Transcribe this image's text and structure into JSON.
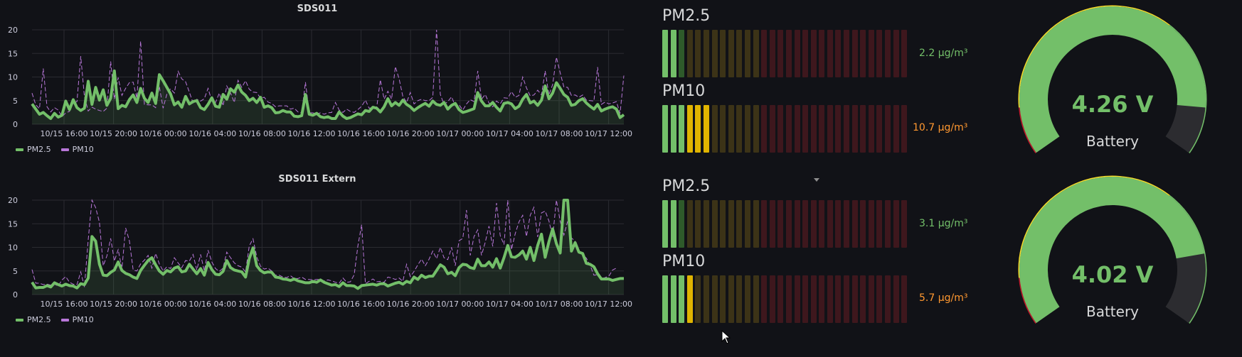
{
  "colors": {
    "pm25": "#73bf69",
    "pm10": "#b877d9",
    "orange": "#ff9830",
    "yellow": "#fade2a",
    "red": "#c4162a",
    "gauge_track": "#2c2c30"
  },
  "charts": [
    {
      "title": "SDS011",
      "legend": [
        {
          "name": "PM2.5",
          "color": "#73bf69"
        },
        {
          "name": "PM10",
          "color": "#b877d9"
        }
      ]
    },
    {
      "title": "SDS011 Extern",
      "legend": [
        {
          "name": "PM2.5",
          "color": "#73bf69"
        },
        {
          "name": "PM10",
          "color": "#b877d9"
        }
      ]
    }
  ],
  "chart_data": [
    {
      "type": "line",
      "title": "SDS011",
      "xlabel": "",
      "ylabel": "",
      "ylim": [
        0,
        20
      ],
      "yticks": [
        "0",
        "5",
        "10",
        "15",
        "20"
      ],
      "xticks": [
        "10/15 16:00",
        "10/15 20:00",
        "10/16 00:00",
        "10/16 04:00",
        "10/16 08:00",
        "10/16 12:00",
        "10/16 16:00",
        "10/16 20:00",
        "10/17 00:00",
        "10/17 04:00",
        "10/17 08:00",
        "10/17 12:00"
      ],
      "grid": true,
      "legend_position": "bottom-left",
      "series": [
        {
          "name": "PM2.5",
          "values": [
            4.3,
            3.2,
            2.1,
            2.5,
            1.8,
            1.2,
            2.3,
            1.5,
            1.9,
            4.9,
            3.1,
            5.2,
            3.5,
            2.9,
            3.4,
            9.1,
            4.2,
            7.8,
            5.1,
            7.3,
            4.0,
            5.5,
            11.3,
            3.3,
            4.0,
            3.7,
            5.2,
            6.2,
            4.6,
            7.6,
            5.5,
            4.6,
            6.6,
            4.4,
            10.5,
            9.2,
            7.8,
            6.4,
            4.1,
            4.7,
            3.6,
            5.9,
            4.3,
            4.8,
            5.0,
            3.5,
            3.1,
            4.2,
            5.6,
            3.8,
            3.6,
            6.3,
            5.3,
            7.5,
            6.8,
            8.3,
            6.8,
            6.1,
            5.0,
            5.5,
            4.6,
            5.7,
            3.6,
            3.9,
            3.5,
            2.4,
            2.5,
            2.9,
            2.6,
            2.6,
            1.7,
            1.6,
            1.8,
            6.3,
            2.1,
            1.9,
            2.3,
            1.6,
            1.4,
            1.6,
            1.2,
            1.2,
            2.6,
            1.7,
            1.2,
            1.4,
            1.8,
            2.2,
            2.0,
            2.9,
            2.7,
            3.6,
            3.4,
            2.6,
            3.7,
            5.4,
            3.9,
            4.6,
            4.0,
            5.1,
            4.2,
            3.7,
            2.9,
            3.5,
            4.0,
            4.4,
            3.8,
            4.9,
            4.2,
            4.0,
            4.6,
            3.2,
            4.0,
            4.4,
            3.1,
            2.5,
            2.7,
            3.0,
            3.3,
            6.7,
            4.9,
            3.9,
            3.9,
            4.6,
            3.6,
            2.8,
            4.4,
            4.6,
            4.3,
            3.3,
            3.8,
            5.3,
            6.3,
            4.5,
            4.9,
            4.0,
            5.1,
            8.1,
            5.4,
            6.6,
            8.8,
            7.6,
            6.3,
            5.7,
            4.0,
            4.2,
            5.0,
            5.4,
            4.5,
            3.8,
            3.2,
            4.2,
            2.8,
            3.2,
            3.5,
            3.7,
            3.2,
            1.4,
            2.0
          ]
        },
        {
          "name": "PM10",
          "values": [
            6.6,
            4.1,
            3.3,
            11.8,
            3.7,
            2.6,
            3.5,
            3.0,
            1.6,
            2.4,
            2.7,
            4.5,
            4.8,
            14.4,
            5.8,
            2.8,
            3.6,
            3.2,
            2.9,
            2.7,
            3.4,
            13.3,
            5.3,
            9.9,
            6.1,
            7.6,
            8.8,
            8.9,
            5.5,
            17.6,
            4.2,
            4.1,
            4.1,
            3.5,
            8.0,
            3.4,
            6.4,
            7.5,
            6.6,
            11.2,
            9.6,
            9.0,
            6.8,
            4.5,
            5.3,
            4.9,
            5.4,
            7.6,
            4.9,
            4.6,
            6.6,
            3.9,
            8.1,
            6.6,
            4.6,
            9.3,
            7.8,
            9.2,
            7.4,
            6.8,
            6.7,
            5.5,
            5.7,
            4.7,
            4.4,
            3.7,
            3.9,
            3.9,
            3.9,
            3.2,
            3.4,
            2.6,
            2.4,
            8.9,
            2.4,
            2.4,
            2.2,
            2.4,
            2.1,
            2.4,
            2.5,
            4.6,
            3.0,
            2.5,
            3.2,
            2.7,
            2.5,
            3.1,
            3.8,
            5.1,
            3.4,
            3.5,
            3.5,
            9.4,
            5.3,
            7.0,
            5.3,
            12.2,
            9.6,
            5.9,
            4.6,
            6.7,
            4.3,
            5.0,
            5.3,
            5.0,
            5.0,
            5.7,
            20.0,
            6.3,
            4.2,
            4.8,
            5.8,
            3.9,
            4.1,
            3.0,
            4.3,
            5.2,
            4.8,
            11.3,
            5.3,
            6.3,
            4.5,
            3.7,
            4.9,
            4.3,
            5.6,
            5.5,
            6.9,
            5.7,
            6.1,
            10.0,
            7.7,
            6.0,
            6.2,
            7.2,
            6.2,
            11.3,
            6.2,
            8.4,
            14.2,
            10.9,
            7.9,
            7.8,
            6.1,
            6.2,
            5.7,
            6.2,
            5.1,
            5.0,
            4.9,
            12.1,
            4.2,
            4.7,
            4.3,
            4.5,
            4.8,
            2.3,
            10.3
          ]
        }
      ]
    },
    {
      "type": "line",
      "title": "SDS011 Extern",
      "xlabel": "",
      "ylabel": "",
      "ylim": [
        0,
        20
      ],
      "yticks": [
        "0",
        "5",
        "10",
        "15",
        "20"
      ],
      "xticks": [
        "10/15 16:00",
        "10/15 20:00",
        "10/16 00:00",
        "10/16 04:00",
        "10/16 08:00",
        "10/16 12:00",
        "10/16 16:00",
        "10/16 20:00",
        "10/17 00:00",
        "10/17 04:00",
        "10/17 08:00",
        "10/17 12:00"
      ],
      "grid": true,
      "legend_position": "bottom-left",
      "series": [
        {
          "name": "PM2.5",
          "values": [
            2.6,
            1.4,
            1.5,
            1.5,
            1.9,
            1.6,
            2.5,
            2.1,
            1.8,
            2.2,
            1.9,
            1.8,
            1.4,
            2.3,
            2.1,
            3.5,
            12.3,
            11.3,
            6.4,
            4.1,
            4.0,
            4.7,
            5.2,
            6.9,
            5.1,
            4.5,
            4.2,
            3.7,
            3.4,
            5.1,
            6.2,
            7.2,
            7.8,
            6.3,
            5.0,
            4.3,
            5.1,
            4.8,
            5.6,
            5.9,
            4.8,
            5.0,
            6.4,
            5.4,
            4.4,
            5.5,
            4.1,
            6.8,
            5.3,
            4.3,
            4.2,
            4.9,
            7.2,
            5.7,
            5.2,
            5.0,
            4.8,
            3.7,
            7.6,
            9.9,
            6.1,
            5.1,
            4.6,
            4.8,
            4.7,
            3.7,
            3.6,
            3.3,
            3.2,
            3.0,
            3.3,
            2.9,
            2.7,
            2.5,
            2.5,
            2.8,
            2.6,
            3.1,
            2.6,
            2.3,
            2.0,
            2.1,
            1.7,
            2.5,
            1.9,
            1.9,
            1.8,
            1.3,
            1.9,
            2.0,
            2.1,
            2.2,
            2.0,
            2.3,
            2.3,
            1.8,
            2.1,
            2.4,
            2.6,
            2.2,
            2.8,
            2.5,
            3.7,
            3.2,
            4.1,
            3.6,
            3.9,
            3.9,
            5.1,
            6.3,
            5.8,
            4.4,
            4.7,
            4.0,
            5.7,
            6.4,
            6.3,
            5.7,
            5.5,
            7.5,
            6.1,
            6.1,
            6.9,
            5.8,
            7.6,
            5.6,
            7.8,
            10.4,
            8.0,
            7.9,
            8.4,
            9.2,
            7.5,
            10.0,
            7.2,
            10.4,
            12.8,
            7.9,
            11.2,
            13.9,
            10.8,
            8.8,
            20.0,
            20.0,
            9.2,
            11.0,
            9.0,
            8.7,
            6.6,
            6.4,
            5.9,
            4.4,
            3.3,
            3.3,
            3.3,
            3.0,
            3.2,
            3.4,
            3.4
          ]
        },
        {
          "name": "PM10",
          "values": [
            5.3,
            2.4,
            2.4,
            2.1,
            2.2,
            2.0,
            2.2,
            1.8,
            3.1,
            3.8,
            2.6,
            2.2,
            2.1,
            4.8,
            1.6,
            11.6,
            20.0,
            18.4,
            15.3,
            6.1,
            8.2,
            11.9,
            7.1,
            9.5,
            5.5,
            14.1,
            11.4,
            5.2,
            5.0,
            6.5,
            7.3,
            8.3,
            5.6,
            8.7,
            6.5,
            5.0,
            5.9,
            5.5,
            7.8,
            6.7,
            5.7,
            7.2,
            7.1,
            8.5,
            5.2,
            8.5,
            5.0,
            9.4,
            6.9,
            5.5,
            4.9,
            5.6,
            9.0,
            7.8,
            6.7,
            6.1,
            5.8,
            4.8,
            10.3,
            11.8,
            8.0,
            6.0,
            5.4,
            5.6,
            5.0,
            4.1,
            4.1,
            3.7,
            3.6,
            4.0,
            3.4,
            3.4,
            3.7,
            3.2,
            3.2,
            3.1,
            3.2,
            3.2,
            2.9,
            3.1,
            2.9,
            2.6,
            2.4,
            3.5,
            2.6,
            2.7,
            4.2,
            10.3,
            14.8,
            2.3,
            2.8,
            3.3,
            2.7,
            2.8,
            2.6,
            3.7,
            3.5,
            3.2,
            3.5,
            2.8,
            6.4,
            3.8,
            4.9,
            6.3,
            7.5,
            6.1,
            7.5,
            9.2,
            7.6,
            10.0,
            7.8,
            7.4,
            10.0,
            6.1,
            11.4,
            11.9,
            17.9,
            8.3,
            12.3,
            13.7,
            8.3,
            11.1,
            14.5,
            10.2,
            19.4,
            12.5,
            10.6,
            20.0,
            9.5,
            12.9,
            15.4,
            16.8,
            12.3,
            16.8,
            18.5,
            12.2,
            17.3,
            17.7,
            15.6,
            12.2,
            20.0,
            15.6,
            12.6,
            15.5,
            12.0,
            11.3,
            9.0,
            8.5,
            7.7,
            6.2,
            4.1,
            4.2,
            3.3,
            3.6,
            3.9,
            5.2,
            5.6
          ]
        }
      ]
    }
  ],
  "bargauges": [
    {
      "title": "PM2.5",
      "value_text": "2.2 µg/m³",
      "value": 2.2,
      "lit_cells": 3,
      "value_color": "#73bf69"
    },
    {
      "title": "PM10",
      "value_text": "10.7 µg/m³",
      "value": 10.7,
      "lit_cells": 6,
      "value_color": "#ff9830"
    },
    {
      "title": "PM2.5",
      "value_text": "3.1 µg/m³",
      "value": 3.1,
      "lit_cells": 3,
      "value_color": "#73bf69"
    },
    {
      "title": "PM10",
      "value_text": "5.7 µg/m³",
      "value": 5.7,
      "lit_cells": 4,
      "value_color": "#ff9830"
    }
  ],
  "gauges": [
    {
      "value_text": "4.26 V",
      "label": "Battery",
      "value_fraction": 0.88
    },
    {
      "value_text": "4.02 V",
      "label": "Battery",
      "value_fraction": 0.82
    }
  ]
}
